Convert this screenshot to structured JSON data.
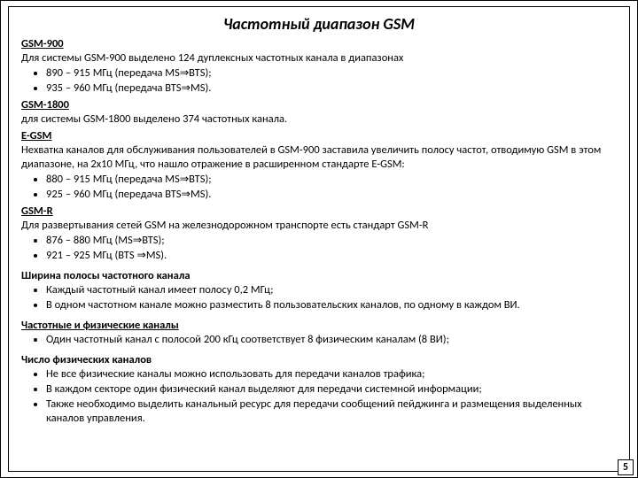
{
  "title": "Частотный диапазон GSM",
  "gsm900": {
    "heading": "GSM-900",
    "intro": "Для системы GSM-900 выделено 124 дуплексных частотных канала в диапазонах",
    "b1": "890 – 915 МГц (передача MS⇒BTS);",
    "b2": "935 – 960 МГц (передача BTS⇒MS)."
  },
  "gsm1800": {
    "heading": "GSM-1800",
    "intro": "для  системы GSM-1800 выделено 374 частотных канала."
  },
  "egsm": {
    "heading": "E-GSM",
    "intro": "Нехватка каналов для обслуживания пользователей в GSM-900 заставила увеличить полосу частот, отводимую GSM в этом диапазоне, на 2х10 МГц, что нашло отражение в расширенном стандарте E-GSM:",
    "b1": "880 – 915 МГц (передача MS⇒BTS);",
    "b2": "925 – 960 МГц (передача BTS⇒MS)."
  },
  "gsmr": {
    "heading": "GSM-R",
    "intro": " Для развертывания сетей GSM на железнодорожном транспорте есть стандарт GSM-R",
    "b1": "876 – 880 МГц (MS⇒BTS);",
    "b2": "921 – 925 МГц (BTS ⇒MS)."
  },
  "bandwidth": {
    "heading": "Ширина полосы частотного канала",
    "b1": "Каждый частотный канал имеет полосу 0,2 МГц;",
    "b2": "В одном частотном канале можно разместить 8 пользовательских каналов, по одному в каждом ВИ."
  },
  "phys": {
    "heading": "Частотные и физические каналы",
    "b1": "Один частотный канал с полосой 200 кГц соответствует 8 физическим каналам (8 ВИ);"
  },
  "count": {
    "heading": "Число физических каналов",
    "b1": "Не все физические каналы можно использовать для передачи каналов трафика;",
    "b2": "В каждом секторе один физический канал выделяют для передачи системной информации;",
    "b3": "Также необходимо выделить канальный ресурс для передачи сообщений пейджинга и размещения выделенных каналов управления."
  },
  "page": "5"
}
